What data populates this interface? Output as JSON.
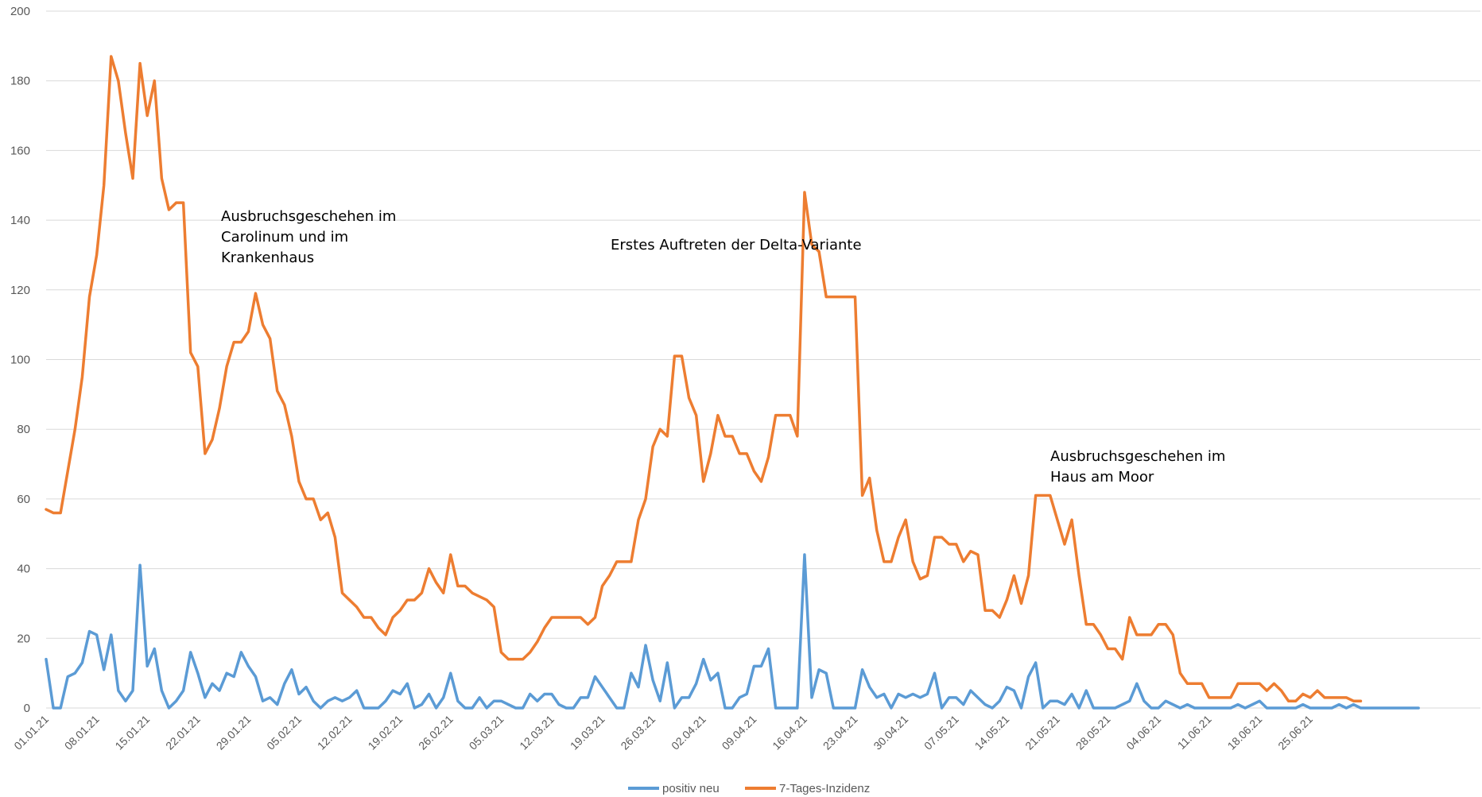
{
  "colors": {
    "positiv_neu": "#5b9bd5",
    "inzidenz": "#ed7d31",
    "grid": "#d9d9d9",
    "axis_text": "#595959"
  },
  "legend": {
    "series1": "positiv neu",
    "series2": "7-Tages-Inzidenz"
  },
  "annotations": {
    "a1": [
      "Ausbruchsgeschehen im",
      "Carolinum und im",
      "Krankenhaus"
    ],
    "a2": [
      "Erstes Auftreten der Delta-Variante"
    ],
    "a3": [
      "Ausbruchsgeschehen im",
      "Haus am Moor"
    ]
  },
  "chart_data": {
    "type": "line",
    "title": "",
    "xlabel": "",
    "ylabel": "",
    "ylim": [
      0,
      200
    ],
    "yticks": [
      0,
      20,
      40,
      60,
      80,
      100,
      120,
      140,
      160,
      180,
      200
    ],
    "xticks": [
      "01.01.21",
      "08.01.21",
      "15.01.21",
      "22.01.21",
      "29.01.21",
      "05.02.21",
      "12.02.21",
      "19.02.21",
      "26.02.21",
      "05.03.21",
      "12.03.21",
      "19.03.21",
      "26.03.21",
      "02.04.21",
      "09.04.21",
      "16.04.21",
      "23.04.21",
      "30.04.21",
      "07.05.21",
      "14.05.21",
      "21.05.21",
      "28.05.21",
      "04.06.21",
      "11.06.21",
      "18.06.21",
      "25.06.21"
    ],
    "x_start": "01.01.21",
    "x_step": "1 day",
    "grid": true,
    "legend_position": "bottom",
    "series": [
      {
        "name": "positiv neu",
        "values": [
          14,
          0,
          0,
          9,
          10,
          13,
          22,
          21,
          11,
          21,
          5,
          2,
          5,
          41,
          12,
          17,
          5,
          0,
          2,
          5,
          16,
          10,
          3,
          7,
          5,
          10,
          9,
          16,
          12,
          9,
          2,
          3,
          1,
          7,
          11,
          4,
          6,
          2,
          0,
          2,
          3,
          2,
          3,
          5,
          0,
          0,
          0,
          2,
          5,
          4,
          7,
          0,
          1,
          4,
          0,
          3,
          10,
          2,
          0,
          0,
          3,
          0,
          2,
          2,
          1,
          0,
          0,
          4,
          2,
          4,
          4,
          1,
          0,
          0,
          3,
          3,
          9,
          6,
          3,
          0,
          0,
          10,
          6,
          18,
          8,
          2,
          13,
          0,
          3,
          3,
          7,
          14,
          8,
          10,
          0,
          0,
          3,
          4,
          12,
          12,
          17,
          0,
          0,
          0,
          0,
          44,
          3,
          11,
          10,
          0,
          0,
          0,
          0,
          11,
          6,
          3,
          4,
          0,
          4,
          3,
          4,
          3,
          4,
          10,
          0,
          3,
          3,
          1,
          5,
          3,
          1,
          0,
          2,
          6,
          5,
          0,
          9,
          13,
          0,
          2,
          2,
          1,
          4,
          0,
          5,
          0,
          0,
          0,
          0,
          1,
          2,
          7,
          2,
          0,
          0,
          2,
          1,
          0,
          1,
          0,
          0,
          0,
          0,
          0,
          0,
          1,
          0,
          1,
          2,
          0,
          0,
          0,
          0,
          0,
          1,
          0,
          0,
          0,
          0,
          1,
          0,
          1,
          0,
          0,
          0,
          0,
          0,
          0,
          0,
          0,
          0
        ]
      },
      {
        "name": "7-Tages-Inzidenz",
        "values": [
          57,
          56,
          56,
          68,
          80,
          95,
          118,
          130,
          150,
          187,
          180,
          165,
          152,
          185,
          170,
          180,
          152,
          143,
          145,
          145,
          102,
          98,
          73,
          77,
          86,
          98,
          105,
          105,
          108,
          119,
          110,
          106,
          91,
          87,
          78,
          65,
          60,
          60,
          54,
          56,
          49,
          33,
          31,
          29,
          26,
          26,
          23,
          21,
          26,
          28,
          31,
          31,
          33,
          40,
          36,
          33,
          44,
          35,
          35,
          33,
          32,
          31,
          29,
          16,
          14,
          14,
          14,
          16,
          19,
          23,
          26,
          26,
          26,
          26,
          26,
          24,
          26,
          35,
          38,
          42,
          42,
          42,
          54,
          60,
          75,
          80,
          78,
          101,
          101,
          89,
          84,
          65,
          73,
          84,
          78,
          78,
          73,
          73,
          68,
          65,
          72,
          84,
          84,
          84,
          78,
          148,
          133,
          131,
          118,
          118,
          118,
          118,
          118,
          61,
          66,
          51,
          42,
          42,
          49,
          54,
          42,
          37,
          38,
          49,
          49,
          47,
          47,
          42,
          45,
          44,
          28,
          28,
          26,
          31,
          38,
          30,
          38,
          61,
          61,
          61,
          54,
          47,
          54,
          38,
          24,
          24,
          21,
          17,
          17,
          14,
          26,
          21,
          21,
          21,
          24,
          24,
          21,
          10,
          7,
          7,
          7,
          3,
          3,
          3,
          3,
          7,
          7,
          7,
          7,
          5,
          7,
          5,
          2,
          2,
          4,
          3,
          5,
          3,
          3,
          3,
          3,
          2,
          2
        ]
      }
    ]
  }
}
